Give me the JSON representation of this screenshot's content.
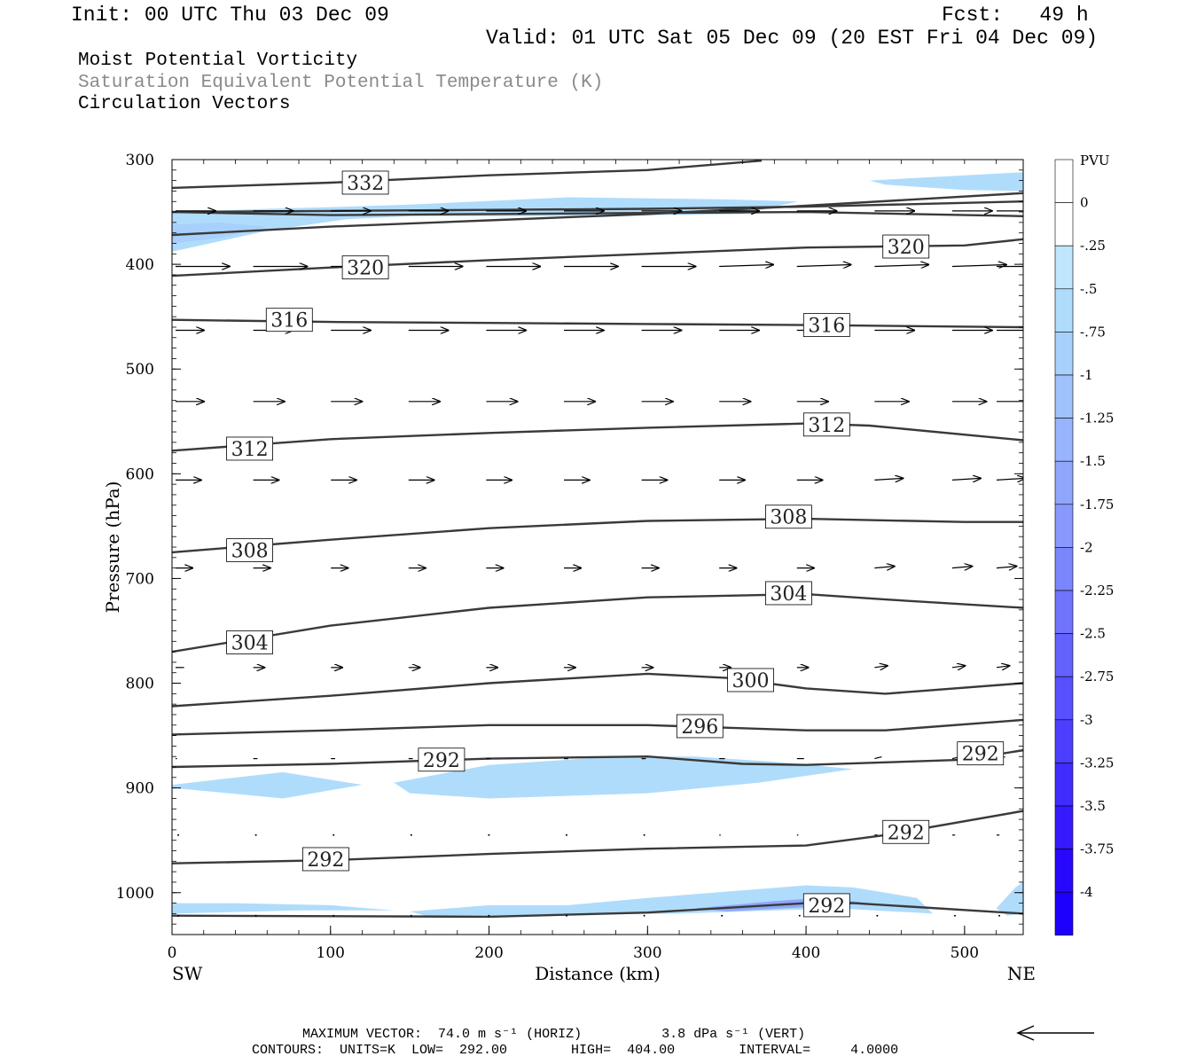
{
  "header": {
    "init": "Init: 00 UTC Thu 03 Dec 09",
    "fcst": "Fcst:   49 h",
    "valid": "Valid: 01 UTC Sat 05 Dec 09 (20 EST Fri 04 Dec 09)"
  },
  "legend_titles": [
    "Moist Potential Vorticity",
    "Saturation Equivalent Potential Temperature (K)",
    "Circulation Vectors"
  ],
  "footer": {
    "max_vector": "MAXIMUM VECTOR:  74.0 m s⁻¹ (HORIZ)          3.8 dPa s⁻¹ (VERT)",
    "contours": "CONTOURS:  UNITS=K  LOW=  292.00        HIGH=  404.00        INTERVAL=     4.0000"
  },
  "colors": {
    "contour": "#3a3a3a",
    "shade_levels": [
      "#ffffff",
      "#ffffff",
      "#bfe6fc",
      "#b0dcfc",
      "#a8d0fc",
      "#a0c2fc",
      "#98b4fc",
      "#90a6fc",
      "#8898fc",
      "#7c86fc",
      "#7074fc",
      "#6462fc",
      "#5850fc",
      "#4c3efc",
      "#402cfc",
      "#341afc",
      "#2808fc",
      "#1c00fc"
    ]
  },
  "chart_data": {
    "type": "contour",
    "xlabel": "Distance (km)",
    "ylabel": "Pressure (hPa)",
    "xlim": [
      0,
      537
    ],
    "ylim": [
      1040,
      300
    ],
    "x_ticks": [
      0,
      100,
      200,
      300,
      400,
      500
    ],
    "y_ticks": [
      300,
      400,
      500,
      600,
      700,
      800,
      900,
      1000
    ],
    "endpoint_labels": {
      "left": "SW",
      "right": "NE"
    },
    "colorbar": {
      "units": "PVU",
      "labels": [
        "0",
        "-.25",
        "-.5",
        "-.75",
        "-1",
        "-1.25",
        "-1.5",
        "-1.75",
        "-2",
        "-2.25",
        "-2.5",
        "-2.75",
        "-3",
        "-3.25",
        "-3.5",
        "-3.75",
        "-4"
      ]
    },
    "theta_contours": [
      {
        "label": "332",
        "points": [
          [
            0,
            327
          ],
          [
            100,
            322
          ],
          [
            200,
            315
          ],
          [
            300,
            310
          ],
          [
            372,
            301
          ]
        ],
        "label_at": [
          122,
          322
        ]
      },
      {
        "label": "",
        "points": [
          [
            0,
            372
          ],
          [
            100,
            364
          ],
          [
            200,
            358
          ],
          [
            300,
            352
          ],
          [
            400,
            344
          ],
          [
            537,
            332
          ]
        ]
      },
      {
        "label": "",
        "points": [
          [
            0,
            350
          ],
          [
            100,
            349
          ],
          [
            200,
            348
          ],
          [
            300,
            347
          ],
          [
            400,
            345
          ],
          [
            537,
            340
          ]
        ]
      },
      {
        "label": "",
        "points": [
          [
            0,
            350
          ],
          [
            100,
            353
          ],
          [
            200,
            352
          ],
          [
            300,
            351
          ],
          [
            400,
            350
          ],
          [
            537,
            354
          ]
        ]
      },
      {
        "label": "320",
        "points": [
          [
            0,
            411
          ],
          [
            100,
            403
          ],
          [
            200,
            396
          ],
          [
            300,
            390
          ],
          [
            400,
            384
          ],
          [
            500,
            382
          ],
          [
            537,
            376
          ]
        ],
        "label_at": [
          122,
          403
        ]
      },
      {
        "label": "320",
        "points": [],
        "label_at": [
          463,
          383
        ]
      },
      {
        "label": "316",
        "points": [
          [
            0,
            453
          ],
          [
            100,
            455
          ],
          [
            200,
            456
          ],
          [
            300,
            457
          ],
          [
            400,
            458
          ],
          [
            537,
            460
          ]
        ],
        "label_at": [
          74,
          453
        ]
      },
      {
        "label": "316",
        "points": [],
        "label_at": [
          413,
          458
        ]
      },
      {
        "label": "312",
        "points": [
          [
            0,
            578
          ],
          [
            100,
            567
          ],
          [
            200,
            561
          ],
          [
            300,
            556
          ],
          [
            400,
            552
          ],
          [
            440,
            554
          ],
          [
            537,
            568
          ]
        ],
        "label_at": [
          49,
          576
        ]
      },
      {
        "label": "312",
        "points": [],
        "label_at": [
          413,
          553
        ]
      },
      {
        "label": "308",
        "points": [
          [
            0,
            675
          ],
          [
            100,
            663
          ],
          [
            200,
            652
          ],
          [
            300,
            645
          ],
          [
            400,
            643
          ],
          [
            500,
            646
          ],
          [
            537,
            646
          ]
        ],
        "label_at": [
          49,
          673
        ]
      },
      {
        "label": "308",
        "points": [],
        "label_at": [
          389,
          641
        ]
      },
      {
        "label": "304",
        "points": [
          [
            0,
            770
          ],
          [
            100,
            745
          ],
          [
            200,
            728
          ],
          [
            300,
            718
          ],
          [
            400,
            715
          ],
          [
            450,
            720
          ],
          [
            537,
            728
          ]
        ],
        "label_at": [
          49,
          761
        ]
      },
      {
        "label": "304",
        "points": [],
        "label_at": [
          389,
          714
        ]
      },
      {
        "label": "300",
        "points": [
          [
            0,
            822
          ],
          [
            100,
            812
          ],
          [
            200,
            800
          ],
          [
            300,
            791
          ],
          [
            350,
            795
          ],
          [
            400,
            805
          ],
          [
            450,
            810
          ],
          [
            537,
            800
          ]
        ],
        "label_at": [
          365,
          797
        ]
      },
      {
        "label": "296",
        "points": [
          [
            0,
            849
          ],
          [
            100,
            845
          ],
          [
            200,
            840
          ],
          [
            300,
            840
          ],
          [
            400,
            845
          ],
          [
            450,
            845
          ],
          [
            537,
            835
          ]
        ],
        "label_at": [
          333,
          841
        ]
      },
      {
        "label": "292",
        "points": [
          [
            0,
            880
          ],
          [
            100,
            877
          ],
          [
            200,
            872
          ],
          [
            300,
            870
          ],
          [
            360,
            877
          ],
          [
            400,
            878
          ],
          [
            500,
            873
          ],
          [
            537,
            864
          ]
        ],
        "label_at": [
          170,
          873
        ]
      },
      {
        "label": "292",
        "points": [],
        "label_at": [
          510,
          867
        ]
      },
      {
        "label": "292",
        "points": [
          [
            0,
            972
          ],
          [
            100,
            969
          ],
          [
            200,
            963
          ],
          [
            300,
            958
          ],
          [
            400,
            955
          ],
          [
            450,
            945
          ],
          [
            537,
            922
          ]
        ],
        "label_at": [
          97,
          968
        ]
      },
      {
        "label": "292",
        "points": [],
        "label_at": [
          463,
          942
        ]
      },
      {
        "label": "",
        "points": [
          [
            0,
            1022
          ],
          [
            200,
            1023
          ],
          [
            300,
            1019
          ],
          [
            400,
            1010
          ],
          [
            430,
            1010
          ],
          [
            537,
            1020
          ]
        ]
      },
      {
        "label": "292",
        "points": [],
        "label_at": [
          413,
          1012
        ]
      }
    ],
    "pv_shading_pvu": [
      {
        "level": -0.5,
        "polygon": [
          [
            0,
            350
          ],
          [
            60,
            347
          ],
          [
            110,
            345
          ],
          [
            150,
            343
          ],
          [
            250,
            336
          ],
          [
            350,
            338
          ],
          [
            395,
            340
          ],
          [
            360,
            352
          ],
          [
            250,
            354
          ],
          [
            150,
            354
          ],
          [
            110,
            357
          ],
          [
            60,
            368
          ],
          [
            0,
            388
          ]
        ]
      },
      {
        "level": -0.75,
        "polygon": [
          [
            0,
            362
          ],
          [
            30,
            360
          ],
          [
            60,
            364
          ],
          [
            30,
            375
          ],
          [
            0,
            380
          ]
        ]
      },
      {
        "label": "upper-right",
        "level": -0.5,
        "polygon": [
          [
            440,
            320
          ],
          [
            537,
            312
          ],
          [
            537,
            330
          ],
          [
            500,
            329
          ],
          [
            450,
            324
          ]
        ]
      },
      {
        "level": -0.5,
        "polygon": [
          [
            0,
            897
          ],
          [
            70,
            885
          ],
          [
            120,
            897
          ],
          [
            70,
            910
          ],
          [
            0,
            900
          ]
        ]
      },
      {
        "level": -0.5,
        "polygon": [
          [
            140,
            895
          ],
          [
            200,
            878
          ],
          [
            280,
            870
          ],
          [
            330,
            870
          ],
          [
            380,
            875
          ],
          [
            430,
            882
          ],
          [
            370,
            895
          ],
          [
            300,
            905
          ],
          [
            200,
            910
          ],
          [
            150,
            905
          ]
        ]
      },
      {
        "level": -0.5,
        "polygon": [
          [
            0,
            1010
          ],
          [
            40,
            1010
          ],
          [
            100,
            1012
          ],
          [
            140,
            1017
          ],
          [
            80,
            1017
          ],
          [
            0,
            1020
          ]
        ]
      },
      {
        "level": -0.5,
        "polygon": [
          [
            150,
            1018
          ],
          [
            200,
            1012
          ],
          [
            250,
            1012
          ],
          [
            300,
            1005
          ],
          [
            400,
            993
          ],
          [
            430,
            995
          ],
          [
            470,
            1005
          ],
          [
            480,
            1020
          ],
          [
            420,
            1015
          ],
          [
            320,
            1020
          ],
          [
            200,
            1022
          ],
          [
            160,
            1022
          ]
        ]
      },
      {
        "level": -1.5,
        "polygon": [
          [
            330,
            1015
          ],
          [
            380,
            1008
          ],
          [
            410,
            1005
          ],
          [
            440,
            1010
          ],
          [
            410,
            1013
          ],
          [
            350,
            1018
          ]
        ]
      },
      {
        "level": -0.5,
        "polygon": [
          [
            520,
            1015
          ],
          [
            532,
            995
          ],
          [
            537,
            990
          ],
          [
            537,
            1020
          ],
          [
            527,
            1022
          ]
        ]
      }
    ],
    "vectors": {
      "note": "Circulation vectors; u scaled to x length, w scaled to y",
      "rows": [
        {
          "p": 349,
          "u": [
            28,
            28,
            28,
            28,
            28,
            28,
            28,
            28,
            28,
            28,
            28,
            28
          ],
          "w": [
            0,
            0,
            0,
            0,
            0,
            0,
            0,
            0,
            0,
            0,
            0,
            0
          ]
        },
        {
          "p": 402,
          "u": [
            38,
            38,
            38,
            38,
            38,
            38,
            38,
            38,
            38,
            38,
            38,
            38
          ],
          "w": [
            0,
            0,
            0,
            0,
            0,
            0,
            0,
            -1,
            -1,
            -1,
            -1,
            0
          ]
        },
        {
          "p": 463,
          "u": [
            20,
            28,
            28,
            28,
            28,
            28,
            28,
            28,
            28,
            28,
            28,
            30
          ],
          "w": [
            0,
            0,
            0,
            0,
            0,
            0,
            0,
            0,
            0,
            0,
            0,
            0
          ]
        },
        {
          "p": 531,
          "u": [
            20,
            22,
            22,
            22,
            22,
            22,
            22,
            22,
            22,
            24,
            24,
            24
          ],
          "w": [
            0,
            0,
            0,
            0,
            0,
            0,
            0,
            0,
            0,
            0,
            0,
            0
          ]
        },
        {
          "p": 606,
          "u": [
            18,
            18,
            18,
            18,
            18,
            18,
            18,
            18,
            18,
            20,
            20,
            20
          ],
          "w": [
            0,
            0,
            0,
            0,
            0,
            0,
            0,
            0,
            0,
            -1,
            -1,
            -1
          ]
        },
        {
          "p": 690,
          "u": [
            12,
            12,
            12,
            12,
            12,
            12,
            12,
            12,
            12,
            14,
            14,
            14
          ],
          "w": [
            0,
            0,
            0,
            0,
            0,
            0,
            0,
            0,
            0,
            -1,
            -1,
            -1
          ]
        },
        {
          "p": 785,
          "u": [
            6,
            8,
            8,
            8,
            8,
            8,
            8,
            8,
            8,
            9,
            9,
            9
          ],
          "w": [
            0,
            0,
            0,
            0,
            0,
            0,
            0,
            0,
            0,
            -1,
            -1,
            -1
          ]
        },
        {
          "p": 872,
          "u": [
            1,
            3,
            3,
            3,
            3,
            3,
            3,
            4,
            5,
            5,
            6,
            6
          ],
          "w": [
            0,
            0,
            0,
            0,
            0,
            0,
            0,
            0,
            0,
            -1,
            -1,
            -1
          ]
        },
        {
          "p": 945,
          "u": [
            0,
            0,
            0,
            0,
            0,
            0,
            0,
            1,
            1,
            2,
            2,
            2
          ],
          "w": [
            0,
            0,
            0,
            0,
            0,
            0,
            0,
            0,
            0,
            0,
            0,
            0
          ]
        },
        {
          "p": 1022,
          "u": [
            0,
            0,
            0,
            0,
            0,
            0,
            0,
            0,
            0,
            0,
            0,
            0
          ],
          "w": [
            0,
            0,
            0,
            0,
            0,
            0,
            0,
            0,
            0,
            0,
            0,
            0
          ]
        }
      ],
      "x": [
        0,
        49,
        98,
        147,
        196,
        245,
        294,
        343,
        392,
        441,
        490,
        537
      ]
    }
  }
}
